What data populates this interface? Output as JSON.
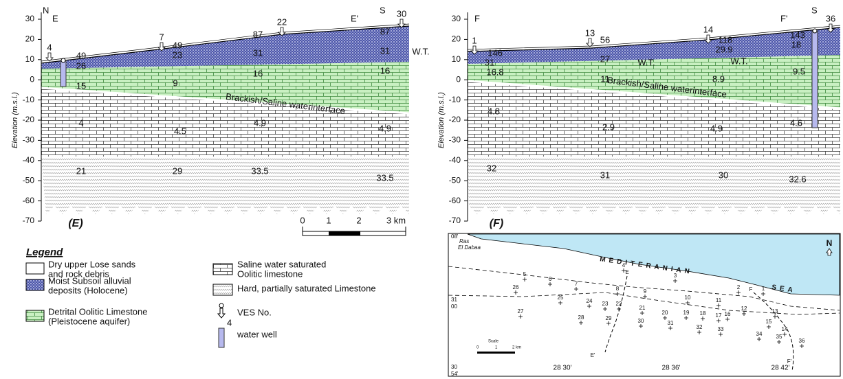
{
  "sections": [
    {
      "panel_label": "(E)",
      "start": "E",
      "end": "E'",
      "north": "N",
      "south": "S",
      "axis_label": "Elevation (m.s.l.)",
      "yticks": [
        30,
        20,
        10,
        0,
        -10,
        -20,
        -30,
        -40,
        -50,
        -60,
        -70
      ],
      "ves": [
        "4",
        "7",
        "22",
        "30"
      ],
      "layer_values": [
        "49",
        "26",
        "15",
        "4",
        "21",
        "49",
        "23",
        "9",
        "4.5",
        "29",
        "87",
        "31",
        "16",
        "4.9",
        "33.5",
        "87",
        "31",
        "16",
        "4.9",
        "33.5"
      ],
      "water_tables": [
        "W.T."
      ],
      "interface": "Brackish/Saline waterinterface"
    },
    {
      "panel_label": "(F)",
      "start": "F",
      "end": "F'",
      "south": "S",
      "axis_label": "Elevation (m.s.l.)",
      "yticks": [
        30,
        20,
        10,
        0,
        -10,
        -20,
        -30,
        -40,
        -50,
        -60,
        -70
      ],
      "ves": [
        "1",
        "13",
        "14",
        "36"
      ],
      "layer_values": [
        "146",
        "31",
        "16.8",
        "4.8",
        "32",
        "56",
        "27",
        "11",
        "2.9",
        "31",
        "118",
        "29.9",
        "8.9",
        "4.9",
        "30",
        "143",
        "18",
        "9.5",
        "4.6",
        "32.6"
      ],
      "water_tables": [
        "W.T.",
        "W.T."
      ],
      "interface": "Brackish/Saline waterinterface"
    }
  ],
  "scale_bar": {
    "ticks": [
      "0",
      "1",
      "2",
      "3 km"
    ]
  },
  "legend": {
    "title": "Legend",
    "items": [
      {
        "lines": [
          "Dry upper Lose sands",
          "and rock debris"
        ]
      },
      {
        "lines": [
          "Moist Subsoil alluvial",
          "deposits (Holocene)"
        ]
      },
      {
        "lines": [
          "Detrital Oolitic Limestone",
          "(Pleistocene aquifer)"
        ]
      },
      {
        "lines": [
          "Saline water saturated",
          "Oolitic limestone"
        ]
      },
      {
        "lines": [
          "Hard, partially saturated Limestone"
        ]
      },
      {
        "lines": [
          "VES No."
        ]
      },
      {
        "lines": [
          "water well"
        ]
      }
    ],
    "ves_example": "4"
  },
  "map": {
    "place": [
      "Ras",
      "El Dabaa"
    ],
    "sea": [
      "MEDITERANIAN",
      "SEA"
    ],
    "north": "N",
    "lat_labels": [
      "08'",
      "31",
      "00",
      "30",
      "54'"
    ],
    "lon_labels": [
      "28 30'",
      "28 36'",
      "28 42'"
    ],
    "section_ends": [
      "E",
      "E'",
      "F",
      "F'"
    ],
    "scale": [
      "Scale",
      "0",
      "1",
      "2 km"
    ],
    "ves_points": [
      "5",
      "6",
      "7",
      "26",
      "8",
      "9",
      "3",
      "4",
      "2",
      "1",
      "25",
      "24",
      "23",
      "22",
      "21",
      "10",
      "11",
      "27",
      "20",
      "19",
      "18",
      "17",
      "16",
      "12",
      "13",
      "28",
      "29",
      "30",
      "31",
      "32",
      "33",
      "15",
      "14",
      "34",
      "35",
      "36"
    ]
  }
}
